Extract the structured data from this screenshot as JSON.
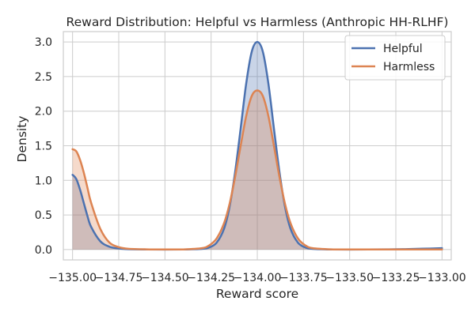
{
  "chart_data": {
    "type": "area",
    "title": "Reward Distribution: Helpful vs Harmless (Anthropic HH-RLHF)",
    "xlabel": "Reward score",
    "ylabel": "Density",
    "xlim": [
      -135.05,
      -132.95
    ],
    "ylim": [
      -0.15,
      3.15
    ],
    "xticks": [
      -135.0,
      -134.75,
      -134.5,
      -134.25,
      -134.0,
      -133.75,
      -133.5,
      -133.25,
      -133.0
    ],
    "xtick_labels": [
      "−135.00",
      "−134.75",
      "−134.50",
      "−134.25",
      "−134.00",
      "−133.75",
      "−133.50",
      "−133.25",
      "−133.00"
    ],
    "yticks": [
      0.0,
      0.5,
      1.0,
      1.5,
      2.0,
      2.5,
      3.0
    ],
    "ytick_labels": [
      "0.0",
      "0.5",
      "1.0",
      "1.5",
      "2.0",
      "2.5",
      "3.0"
    ],
    "grid": true,
    "legend_position": "top-right",
    "series": [
      {
        "name": "Helpful",
        "color": "#4c72b0",
        "fill_color": "#4c72b0",
        "fill_opacity": 0.3,
        "x": [
          -135.0,
          -134.98,
          -134.96,
          -134.94,
          -134.92,
          -134.9,
          -134.85,
          -134.8,
          -134.75,
          -134.7,
          -134.6,
          -134.5,
          -134.4,
          -134.3,
          -134.26,
          -134.22,
          -134.18,
          -134.15,
          -134.12,
          -134.09,
          -134.06,
          -134.03,
          -134.0,
          -133.97,
          -133.94,
          -133.91,
          -133.88,
          -133.85,
          -133.82,
          -133.78,
          -133.74,
          -133.7,
          -133.6,
          -133.5,
          -133.4,
          -133.3,
          -133.2,
          -133.1,
          -133.0
        ],
        "y": [
          1.08,
          1.02,
          0.87,
          0.68,
          0.49,
          0.33,
          0.12,
          0.04,
          0.015,
          0.005,
          0.001,
          0.0,
          0.001,
          0.01,
          0.03,
          0.1,
          0.3,
          0.62,
          1.12,
          1.75,
          2.4,
          2.86,
          3.0,
          2.86,
          2.4,
          1.75,
          1.12,
          0.62,
          0.3,
          0.1,
          0.03,
          0.01,
          0.001,
          0.0,
          0.001,
          0.003,
          0.006,
          0.012,
          0.02
        ]
      },
      {
        "name": "Harmless",
        "color": "#dd8452",
        "fill_color": "#dd8452",
        "fill_opacity": 0.3,
        "x": [
          -135.0,
          -134.98,
          -134.96,
          -134.94,
          -134.92,
          -134.9,
          -134.85,
          -134.8,
          -134.75,
          -134.7,
          -134.6,
          -134.5,
          -134.4,
          -134.3,
          -134.26,
          -134.22,
          -134.18,
          -134.15,
          -134.12,
          -134.09,
          -134.06,
          -134.03,
          -134.0,
          -133.97,
          -133.94,
          -133.91,
          -133.88,
          -133.85,
          -133.82,
          -133.78,
          -133.74,
          -133.7,
          -133.6,
          -133.5,
          -133.4,
          -133.3,
          -133.2,
          -133.1,
          -133.0
        ],
        "y": [
          1.45,
          1.42,
          1.3,
          1.12,
          0.9,
          0.68,
          0.3,
          0.1,
          0.035,
          0.012,
          0.003,
          0.001,
          0.002,
          0.02,
          0.06,
          0.16,
          0.38,
          0.66,
          1.05,
          1.5,
          1.93,
          2.22,
          2.3,
          2.22,
          1.93,
          1.5,
          1.05,
          0.66,
          0.38,
          0.16,
          0.06,
          0.02,
          0.003,
          0.001,
          0.001,
          0.001,
          0.001,
          0.001,
          0.001
        ]
      }
    ]
  }
}
